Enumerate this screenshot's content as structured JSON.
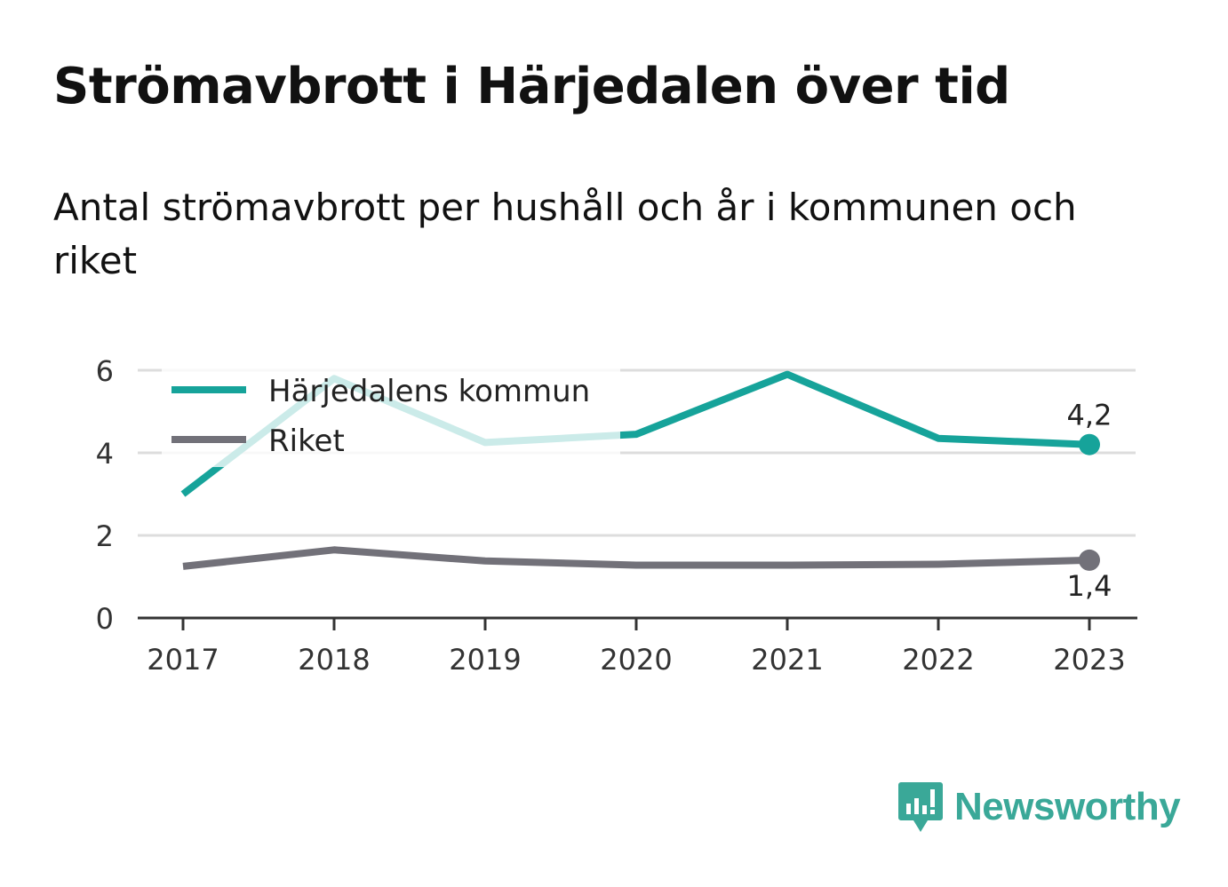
{
  "header": {
    "title": "Strömavbrott i Härjedalen över tid",
    "subtitle": "Antal strömavbrott per hushåll och år i kommunen och riket"
  },
  "brand": {
    "name": "Newsworthy",
    "icon": "newsworthy-logo-icon",
    "color": "#3aa898"
  },
  "chart_data": {
    "type": "line",
    "title": "Strömavbrott i Härjedalen över tid",
    "subtitle": "Antal strömavbrott per hushåll och år i kommunen och riket",
    "xlabel": "",
    "ylabel": "",
    "x": [
      "2017",
      "2018",
      "2019",
      "2020",
      "2021",
      "2022",
      "2023"
    ],
    "ylim": [
      0,
      6
    ],
    "yticks": [
      0,
      2,
      4,
      6
    ],
    "grid": true,
    "legend": "top-left",
    "series": [
      {
        "name": "Härjedalens kommun",
        "color": "#16a39a",
        "values": [
          3.0,
          5.8,
          4.25,
          4.45,
          5.9,
          4.35,
          4.2
        ],
        "end_label": "4,2"
      },
      {
        "name": "Riket",
        "color": "#727179",
        "values": [
          1.25,
          1.65,
          1.38,
          1.28,
          1.28,
          1.3,
          1.4
        ],
        "end_label": "1,4"
      }
    ]
  }
}
